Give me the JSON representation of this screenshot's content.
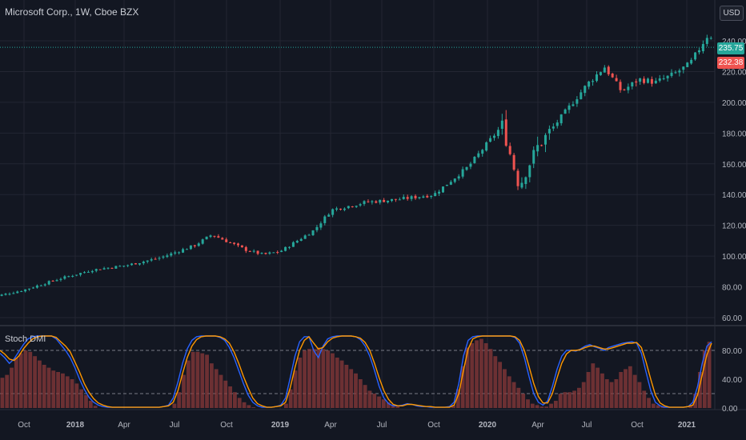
{
  "header": {
    "title": "Microsoft Corp., 1W, Cboe BZX",
    "currency": "USD"
  },
  "price_tags": {
    "last": "235.75",
    "previous": "232.38"
  },
  "indicator": {
    "title": "Stoch DMI"
  },
  "colors": {
    "background": "#131722",
    "grid": "#232632",
    "up": "#26a69a",
    "down": "#ef5350",
    "k_line": "#2962ff",
    "d_line": "#ff9800",
    "histogram": "#8b3a3a"
  },
  "chart_data": [
    {
      "type": "candlestick",
      "title": "Microsoft Corp., 1W, Cboe BZX",
      "ylim": [
        52,
        252
      ],
      "y_ticks": [
        "60.00",
        "80.00",
        "100.00",
        "120.00",
        "140.00",
        "160.00",
        "180.00",
        "200.00",
        "220.00",
        "240.00"
      ],
      "x_ticks": [
        "Oct",
        "2018",
        "Apr",
        "Jul",
        "Oct",
        "2019",
        "Apr",
        "Jul",
        "Oct",
        "2020",
        "Apr",
        "Jul",
        "Oct",
        "2021"
      ],
      "x_ticks_bold": [
        "2018",
        "2019",
        "2020",
        "2021"
      ],
      "last_price": 235.75,
      "close_anchors": [
        {
          "x": "2017-08",
          "y": 73
        },
        {
          "x": "2017-10",
          "y": 78
        },
        {
          "x": "2017-12",
          "y": 85
        },
        {
          "x": "2018-02",
          "y": 91
        },
        {
          "x": "2018-04",
          "y": 94
        },
        {
          "x": "2018-06",
          "y": 99
        },
        {
          "x": "2018-08",
          "y": 107
        },
        {
          "x": "2018-09",
          "y": 114
        },
        {
          "x": "2018-11",
          "y": 104
        },
        {
          "x": "2018-12",
          "y": 101
        },
        {
          "x": "2019-01",
          "y": 103
        },
        {
          "x": "2019-03",
          "y": 117
        },
        {
          "x": "2019-04",
          "y": 130
        },
        {
          "x": "2019-06",
          "y": 135
        },
        {
          "x": "2019-08",
          "y": 137
        },
        {
          "x": "2019-10",
          "y": 140
        },
        {
          "x": "2019-12",
          "y": 158
        },
        {
          "x": "2020-02",
          "y": 185
        },
        {
          "x": "2020-03",
          "y": 145
        },
        {
          "x": "2020-04",
          "y": 170
        },
        {
          "x": "2020-06",
          "y": 198
        },
        {
          "x": "2020-07",
          "y": 212
        },
        {
          "x": "2020-08",
          "y": 223
        },
        {
          "x": "2020-09",
          "y": 207
        },
        {
          "x": "2020-10",
          "y": 215
        },
        {
          "x": "2020-11",
          "y": 213
        },
        {
          "x": "2020-12",
          "y": 218
        },
        {
          "x": "2021-01",
          "y": 225
        },
        {
          "x": "2021-02",
          "y": 243
        }
      ]
    },
    {
      "type": "line",
      "title": "Stoch DMI",
      "ylim": [
        0,
        100
      ],
      "y_ticks": [
        "0.00",
        "40.00",
        "80.00"
      ],
      "levels": [
        20,
        80
      ],
      "series": [
        {
          "values": [
            76,
            70,
            62,
            68,
            78,
            88,
            96,
            99,
            100,
            100,
            100,
            100,
            96,
            88,
            80,
            70,
            56,
            40,
            26,
            15,
            8,
            4,
            2,
            1,
            1,
            1,
            1,
            1,
            1,
            1,
            1,
            1,
            1,
            1,
            1,
            2,
            4,
            14,
            36,
            62,
            82,
            94,
            99,
            100,
            100,
            100,
            100,
            98,
            94,
            84,
            70,
            52,
            34,
            18,
            8,
            3,
            1,
            1,
            1,
            2,
            4,
            14,
            42,
            72,
            92,
            99,
            99,
            80,
            70,
            86,
            96,
            99,
            100,
            100,
            100,
            100,
            99,
            95,
            86,
            72,
            52,
            30,
            14,
            6,
            3,
            3,
            4,
            6,
            5,
            3,
            2,
            2,
            1,
            1,
            1,
            1,
            2,
            8,
            34,
            72,
            94,
            99,
            100,
            100,
            100,
            100,
            100,
            100,
            100,
            100,
            98,
            90,
            70,
            44,
            20,
            8,
            4,
            10,
            30,
            54,
            72,
            80,
            80,
            79,
            82,
            86,
            88,
            85,
            83,
            80,
            84,
            86,
            88,
            90,
            91,
            92,
            90,
            76,
            50,
            24,
            8,
            3,
            1,
            1,
            1,
            1,
            1,
            2,
            8,
            30,
            62,
            86,
            92
          ]
        },
        {
          "values": [
            80,
            75,
            68,
            66,
            72,
            82,
            90,
            96,
            99,
            100,
            100,
            100,
            98,
            92,
            86,
            78,
            64,
            50,
            34,
            22,
            13,
            7,
            4,
            2,
            1,
            1,
            1,
            1,
            1,
            1,
            1,
            1,
            1,
            1,
            1,
            2,
            3,
            8,
            24,
            48,
            70,
            86,
            95,
            99,
            100,
            100,
            100,
            99,
            96,
            90,
            78,
            62,
            44,
            28,
            14,
            6,
            3,
            1,
            1,
            2,
            3,
            8,
            28,
            56,
            80,
            94,
            99,
            90,
            82,
            84,
            92,
            97,
            99,
            100,
            100,
            100,
            99,
            97,
            91,
            80,
            62,
            42,
            24,
            12,
            5,
            3,
            3,
            5,
            5,
            4,
            3,
            2,
            2,
            1,
            1,
            1,
            1,
            4,
            20,
            52,
            82,
            96,
            99,
            100,
            100,
            100,
            100,
            100,
            100,
            100,
            99,
            94,
            80,
            58,
            34,
            16,
            7,
            7,
            20,
            42,
            62,
            75,
            80,
            80,
            81,
            84,
            86,
            86,
            84,
            82,
            82,
            84,
            86,
            88,
            90,
            90,
            91,
            84,
            64,
            40,
            18,
            7,
            3,
            1,
            1,
            1,
            1,
            2,
            4,
            18,
            46,
            74,
            90
          ]
        }
      ],
      "histogram": [
        42,
        46,
        56,
        70,
        76,
        80,
        78,
        72,
        66,
        60,
        56,
        52,
        50,
        48,
        44,
        40,
        34,
        26,
        18,
        10,
        3,
        0,
        0,
        0,
        0,
        0,
        0,
        0,
        0,
        0,
        0,
        0,
        0,
        0,
        0,
        0,
        0,
        6,
        22,
        46,
        66,
        78,
        78,
        76,
        74,
        62,
        54,
        46,
        38,
        30,
        22,
        14,
        8,
        4,
        1,
        0,
        0,
        0,
        0,
        0,
        0,
        6,
        26,
        52,
        70,
        80,
        82,
        82,
        84,
        82,
        80,
        76,
        70,
        66,
        60,
        54,
        48,
        40,
        32,
        24,
        20,
        16,
        12,
        8,
        4,
        2,
        0,
        0,
        0,
        0,
        0,
        0,
        0,
        0,
        0,
        0,
        0,
        4,
        26,
        58,
        84,
        90,
        94,
        96,
        90,
        82,
        72,
        64,
        54,
        44,
        36,
        28,
        20,
        12,
        6,
        4,
        2,
        2,
        6,
        10,
        20,
        22,
        22,
        24,
        28,
        36,
        50,
        62,
        56,
        48,
        40,
        36,
        40,
        50,
        54,
        58,
        46,
        36,
        24,
        14,
        6,
        4,
        2,
        0,
        0,
        0,
        0,
        0,
        4,
        20,
        50,
        80,
        92
      ]
    }
  ]
}
